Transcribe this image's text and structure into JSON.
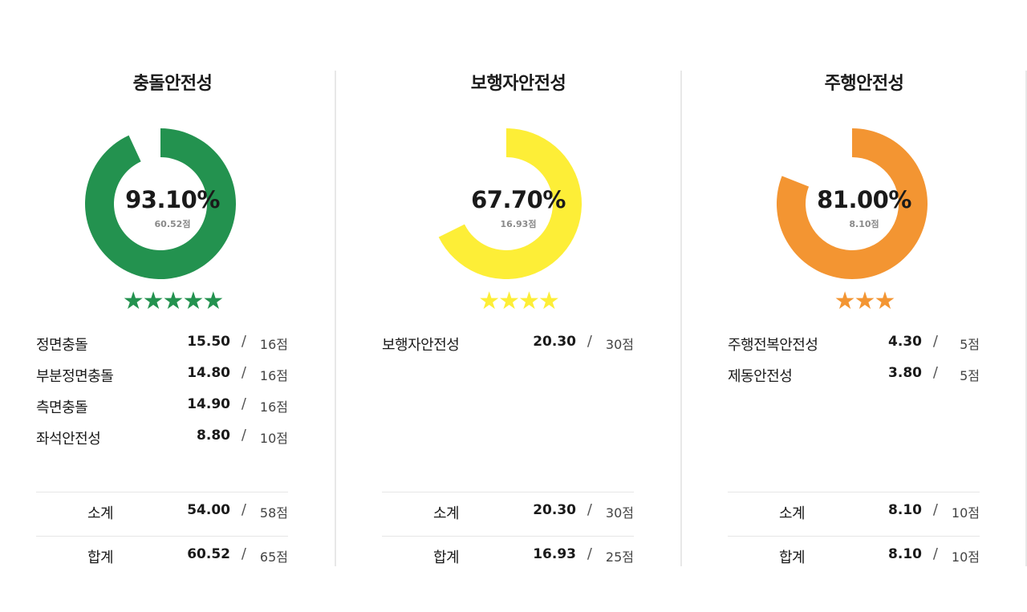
{
  "chart_data": [
    {
      "type": "pie",
      "title": "충돌안전성",
      "percent": 93.1,
      "percent_label": "93.10%",
      "score_label": "60.52점",
      "stars": 5,
      "color": "#23924f",
      "items": [
        {
          "label": "정면충돌",
          "value": "15.50",
          "max": "16점"
        },
        {
          "label": "부분정면충돌",
          "value": "14.80",
          "max": "16점"
        },
        {
          "label": "측면충돌",
          "value": "14.90",
          "max": "16점"
        },
        {
          "label": "좌석안전성",
          "value": "8.80",
          "max": "10점"
        }
      ],
      "subtotal": {
        "label": "소계",
        "value": "54.00",
        "max": "58점"
      },
      "total": {
        "label": "합계",
        "value": "60.52",
        "max": "65점"
      }
    },
    {
      "type": "pie",
      "title": "보행자안전성",
      "percent": 67.7,
      "percent_label": "67.70%",
      "score_label": "16.93점",
      "stars": 4,
      "color": "#fdee37",
      "items": [
        {
          "label": "보행자안전성",
          "value": "20.30",
          "max": "30점"
        }
      ],
      "subtotal": {
        "label": "소계",
        "value": "20.30",
        "max": "30점"
      },
      "total": {
        "label": "합계",
        "value": "16.93",
        "max": "25점"
      }
    },
    {
      "type": "pie",
      "title": "주행안전성",
      "percent": 81.0,
      "percent_label": "81.00%",
      "score_label": "8.10점",
      "stars": 3,
      "color": "#f39532",
      "items": [
        {
          "label": "주행전복안전성",
          "value": "4.30",
          "max": "5점"
        },
        {
          "label": "제동안전성",
          "value": "3.80",
          "max": "5점"
        }
      ],
      "subtotal": {
        "label": "소계",
        "value": "8.10",
        "max": "10점"
      },
      "total": {
        "label": "합계",
        "value": "8.10",
        "max": "10점"
      }
    }
  ],
  "separator": "/",
  "star_glyph": "★"
}
